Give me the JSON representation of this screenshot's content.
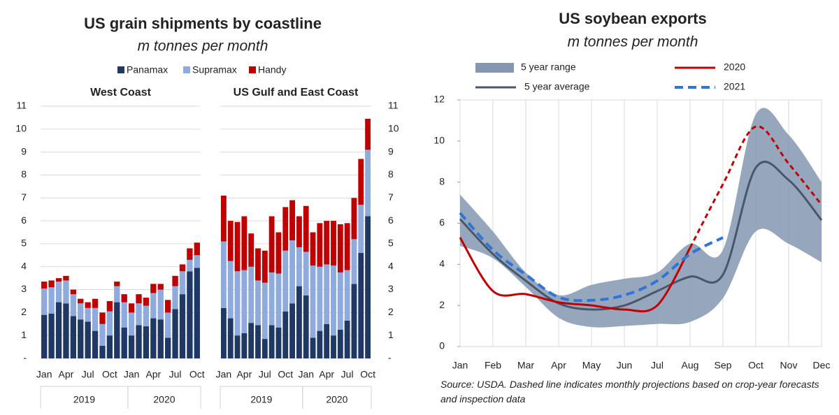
{
  "chart_data": [
    {
      "type": "bar",
      "stacked": true,
      "title": "US grain shipments by coastline",
      "subtitle": "m tonnes per month",
      "panel_title": "West Coast",
      "categories": [
        "Jan",
        null,
        null,
        "Apr",
        null,
        null,
        "Jul",
        null,
        null,
        "Oct",
        null,
        null,
        "Jan",
        null,
        null,
        "Apr",
        null,
        null,
        "Jul",
        null,
        null,
        "Oct"
      ],
      "groups": [
        "2019",
        "2020"
      ],
      "series": [
        {
          "name": "Panamax",
          "color": "#203864",
          "values": [
            1.9,
            1.95,
            2.45,
            2.4,
            1.85,
            1.7,
            1.6,
            1.2,
            0.55,
            1.0,
            2.45,
            1.35,
            1.0,
            1.45,
            1.4,
            1.75,
            1.7,
            0.9,
            2.15,
            2.8,
            3.8,
            3.95
          ]
        },
        {
          "name": "Supramax",
          "color": "#8faadc",
          "values": [
            1.15,
            1.15,
            0.9,
            1.0,
            0.95,
            0.7,
            0.6,
            1.0,
            0.95,
            1.05,
            0.7,
            1.1,
            1.0,
            0.95,
            0.9,
            1.1,
            1.3,
            1.1,
            1.0,
            1.0,
            0.5,
            0.55
          ]
        },
        {
          "name": "Handy",
          "color": "#c00000",
          "values": [
            0.3,
            0.3,
            0.15,
            0.2,
            0.2,
            0.2,
            0.25,
            0.4,
            0.5,
            0.45,
            0.2,
            0.35,
            0.4,
            0.4,
            0.35,
            0.4,
            0.25,
            0.55,
            0.45,
            0.3,
            0.5,
            0.55
          ]
        }
      ],
      "ylim": [
        0,
        11
      ],
      "yticks": [
        {
          "value": 0,
          "label": "-"
        },
        1,
        2,
        3,
        4,
        5,
        6,
        7,
        8,
        9,
        10,
        11
      ],
      "grid": true
    },
    {
      "type": "bar",
      "stacked": true,
      "panel_title": "US Gulf and East Coast",
      "categories": [
        "Jan",
        null,
        null,
        "Apr",
        null,
        null,
        "Jul",
        null,
        null,
        "Oct",
        null,
        null,
        "Jan",
        null,
        null,
        "Apr",
        null,
        null,
        "Jul",
        null,
        null,
        "Oct"
      ],
      "groups": [
        "2019",
        "2020"
      ],
      "series": [
        {
          "color": "#203864",
          "values": [
            2.2,
            1.75,
            1.0,
            1.1,
            1.55,
            1.45,
            0.85,
            1.45,
            1.35,
            2.05,
            2.4,
            3.15,
            2.75,
            0.9,
            1.2,
            1.5,
            1.0,
            1.25,
            1.65,
            3.25,
            4.6,
            6.2
          ]
        },
        {
          "color": "#8faadc",
          "values": [
            2.9,
            2.5,
            2.8,
            2.75,
            2.45,
            1.95,
            2.45,
            2.3,
            2.35,
            2.65,
            2.75,
            1.7,
            1.9,
            3.15,
            2.8,
            2.6,
            3.05,
            2.5,
            2.2,
            1.95,
            2.1,
            2.9
          ]
        },
        {
          "color": "#c00000",
          "values": [
            2.0,
            1.75,
            2.15,
            2.35,
            1.45,
            1.4,
            1.4,
            2.45,
            1.8,
            1.9,
            1.75,
            1.35,
            2.0,
            1.45,
            1.9,
            1.9,
            1.95,
            2.1,
            2.05,
            1.8,
            2.0,
            1.35
          ]
        }
      ],
      "ylim": [
        0,
        11
      ],
      "yticks": [
        {
          "value": 0,
          "label": "-"
        },
        1,
        2,
        3,
        4,
        5,
        6,
        7,
        8,
        9,
        10,
        11
      ],
      "grid": true
    },
    {
      "type": "line",
      "title": "US soybean exports",
      "subtitle": "m tonnes per month",
      "categories": [
        "Jan",
        "Feb",
        "Mar",
        "Apr",
        "May",
        "Jun",
        "Jul",
        "Aug",
        "Sep",
        "Oct",
        "Nov",
        "Dec"
      ],
      "series": [
        {
          "name": "5 year range",
          "kind": "band",
          "color": "#8496b0",
          "lower": [
            4.9,
            4.3,
            2.9,
            1.4,
            0.95,
            1.0,
            1.1,
            1.2,
            2.35,
            5.6,
            5.0,
            4.1
          ],
          "upper": [
            7.4,
            5.6,
            3.6,
            2.5,
            3.0,
            3.3,
            3.6,
            5.0,
            4.7,
            11.3,
            10.3,
            8.0
          ]
        },
        {
          "name": "5 year average",
          "color": "#4a5669",
          "values": [
            6.2,
            4.5,
            3.2,
            2.1,
            1.8,
            2.0,
            2.7,
            3.4,
            3.5,
            8.7,
            8.1,
            6.15
          ]
        },
        {
          "name": "2020",
          "color": "#c00000",
          "dash_from": 7,
          "values": [
            5.3,
            2.7,
            2.55,
            2.15,
            2.0,
            1.8,
            2.0,
            4.8,
            7.9,
            10.7,
            8.9,
            6.9
          ]
        },
        {
          "name": "2021",
          "color": "#2e75d6",
          "dash_from": 0,
          "values": [
            6.5,
            4.7,
            3.5,
            2.4,
            2.25,
            2.5,
            3.2,
            4.5,
            5.3,
            null,
            null,
            null
          ]
        }
      ],
      "ylim": [
        0,
        12
      ],
      "yticks": [
        0,
        2,
        4,
        6,
        8,
        10,
        12
      ],
      "grid": true,
      "source": "Source: USDA. Dashed line indicates monthly projections based on crop-year forecasts and inspection data"
    }
  ]
}
